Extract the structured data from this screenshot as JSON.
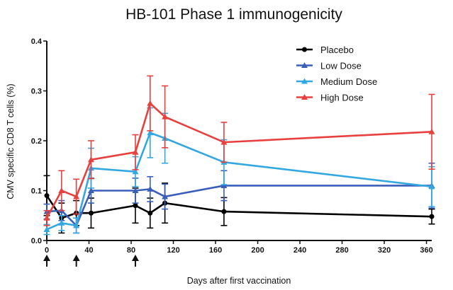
{
  "chart_data": {
    "type": "line",
    "title": "HB-101 Phase 1 immunogenicity",
    "xlabel": "Days after first vaccination",
    "ylabel": "CMV specific CD8 T cells (%)",
    "xlim": [
      0,
      365
    ],
    "ylim": [
      0,
      0.4
    ],
    "xticks": [
      0,
      40,
      80,
      120,
      160,
      200,
      240,
      280,
      320,
      360
    ],
    "yticks": [
      0.0,
      0.1,
      0.2,
      0.3,
      0.4
    ],
    "ytick_labels": [
      "0.0",
      "0.1",
      "0.2",
      "0.3",
      "0.4"
    ],
    "vaccination_days": [
      0,
      28,
      84
    ],
    "legend_position": "top-right",
    "series": [
      {
        "name": "Placebo",
        "color": "#000000",
        "marker": "circle",
        "x": [
          0,
          14,
          28,
          42,
          84,
          98,
          112,
          168,
          365
        ],
        "y": [
          0.09,
          0.045,
          0.055,
          0.055,
          0.07,
          0.055,
          0.075,
          0.058,
          0.048
        ],
        "err": [
          0.04,
          0.03,
          0.025,
          0.03,
          0.035,
          0.03,
          0.04,
          0.028,
          0.015
        ]
      },
      {
        "name": "Low Dose",
        "color": "#3a5fb8",
        "marker": "triangle",
        "x": [
          0,
          14,
          28,
          42,
          84,
          98,
          112,
          168,
          365
        ],
        "y": [
          0.058,
          0.06,
          0.03,
          0.1,
          0.1,
          0.103,
          0.088,
          0.11,
          0.11
        ],
        "err": [
          0.015,
          0.02,
          0.015,
          0.025,
          0.025,
          0.025,
          0.025,
          0.03,
          0.045
        ]
      },
      {
        "name": "Medium Dose",
        "color": "#33a8e0",
        "marker": "triangle",
        "x": [
          0,
          14,
          28,
          42,
          84,
          98,
          112,
          168,
          365
        ],
        "y": [
          0.022,
          0.035,
          0.03,
          0.145,
          0.138,
          0.216,
          0.205,
          0.157,
          0.108
        ],
        "err": [
          0.01,
          0.015,
          0.015,
          0.04,
          0.03,
          0.05,
          0.05,
          0.045,
          0.04
        ]
      },
      {
        "name": "High Dose",
        "color": "#e8403e",
        "marker": "triangle",
        "x": [
          0,
          14,
          28,
          42,
          84,
          98,
          112,
          168,
          365
        ],
        "y": [
          0.045,
          0.1,
          0.088,
          0.162,
          0.177,
          0.275,
          0.248,
          0.197,
          0.218
        ],
        "err": [
          0.015,
          0.04,
          0.035,
          0.038,
          0.035,
          0.055,
          0.062,
          0.04,
          0.075
        ]
      }
    ]
  }
}
